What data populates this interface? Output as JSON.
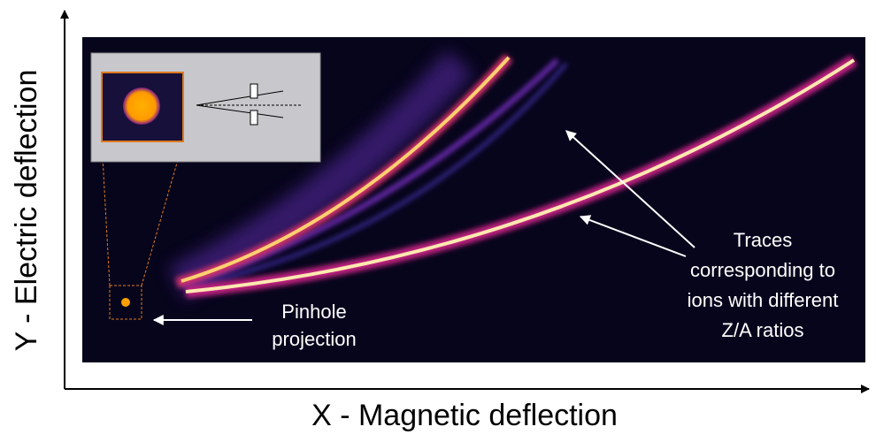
{
  "axes": {
    "y_label": "Y - Electric deflection",
    "x_label": "X - Magnetic deflection"
  },
  "annotations": {
    "pinhole": [
      "Pinhole",
      "projection"
    ],
    "traces": [
      "Traces",
      "corresponding to",
      "ions with different",
      "Z/A ratios"
    ]
  }
}
